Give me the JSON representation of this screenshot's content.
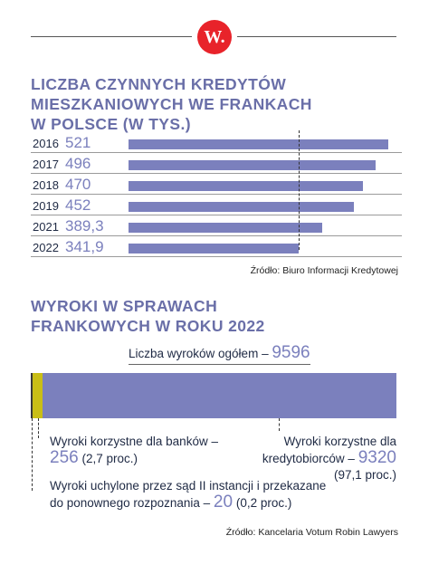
{
  "logo": {
    "text": "W."
  },
  "colors": {
    "bar": "#7b80bd",
    "accent_yellow": "#c9be16",
    "logo_red": "#e8232a"
  },
  "section1": {
    "title_lines": [
      "LICZBA CZYNNYCH KREDYTÓW",
      "MIESZKANIOWYCH WE FRANKACH",
      "W POLSCE (W TYS.)"
    ],
    "source": "Źródło: Biuro Informacji Kredytowej"
  },
  "section2": {
    "title_lines": [
      "WYROKI W SPRAWACH",
      "FRANKOWYCH W ROKU 2022"
    ],
    "total_label": "Liczba wyroków ogółem –",
    "total_value": "9596",
    "banks_label": "Wyroki korzystne dla banków –",
    "banks_value": "256",
    "banks_pct": "(2,7 proc.)",
    "borrowers_label_1": "Wyroki korzystne dla",
    "borrowers_label_2": "kredytobiorców –",
    "borrowers_value": "9320",
    "borrowers_pct": "(97,1 proc.)",
    "overturned_label_1": "Wyroki uchylone przez sąd II instancji i przekazane",
    "overturned_label_2": "do ponownego rozpoznania –",
    "overturned_value": "20",
    "overturned_pct": "(0,2 proc.)",
    "source": "Źródło: Kancelaria Votum Robin Lawyers"
  },
  "chart_data": [
    {
      "type": "bar",
      "orientation": "horizontal",
      "title": "LICZBA CZYNNYCH KREDYTÓW MIESZKANIOWYCH WE FRANKACH W POLSCE (W TYS.)",
      "categories": [
        "2016",
        "2017",
        "2018",
        "2019",
        "2021",
        "2022"
      ],
      "values": [
        521,
        496,
        470,
        452,
        389.3,
        341.9
      ],
      "value_labels": [
        "521",
        "496",
        "470",
        "452",
        "389,3",
        "341,9"
      ],
      "reference_line": 341.9,
      "xlim": [
        0,
        521
      ]
    },
    {
      "type": "bar",
      "orientation": "horizontal",
      "stacked": true,
      "title": "WYROKI W SPRAWACH FRANKOWYCH W ROKU 2022",
      "total": 9596,
      "segments": [
        {
          "name": "Wyroki uchylone przez sąd II instancji i przekazane do ponownego rozpoznania",
          "value": 20,
          "percent": 0.2
        },
        {
          "name": "Wyroki korzystne dla banków",
          "value": 256,
          "percent": 2.7
        },
        {
          "name": "Wyroki korzystne dla kredytobiorców",
          "value": 9320,
          "percent": 97.1
        }
      ]
    }
  ]
}
